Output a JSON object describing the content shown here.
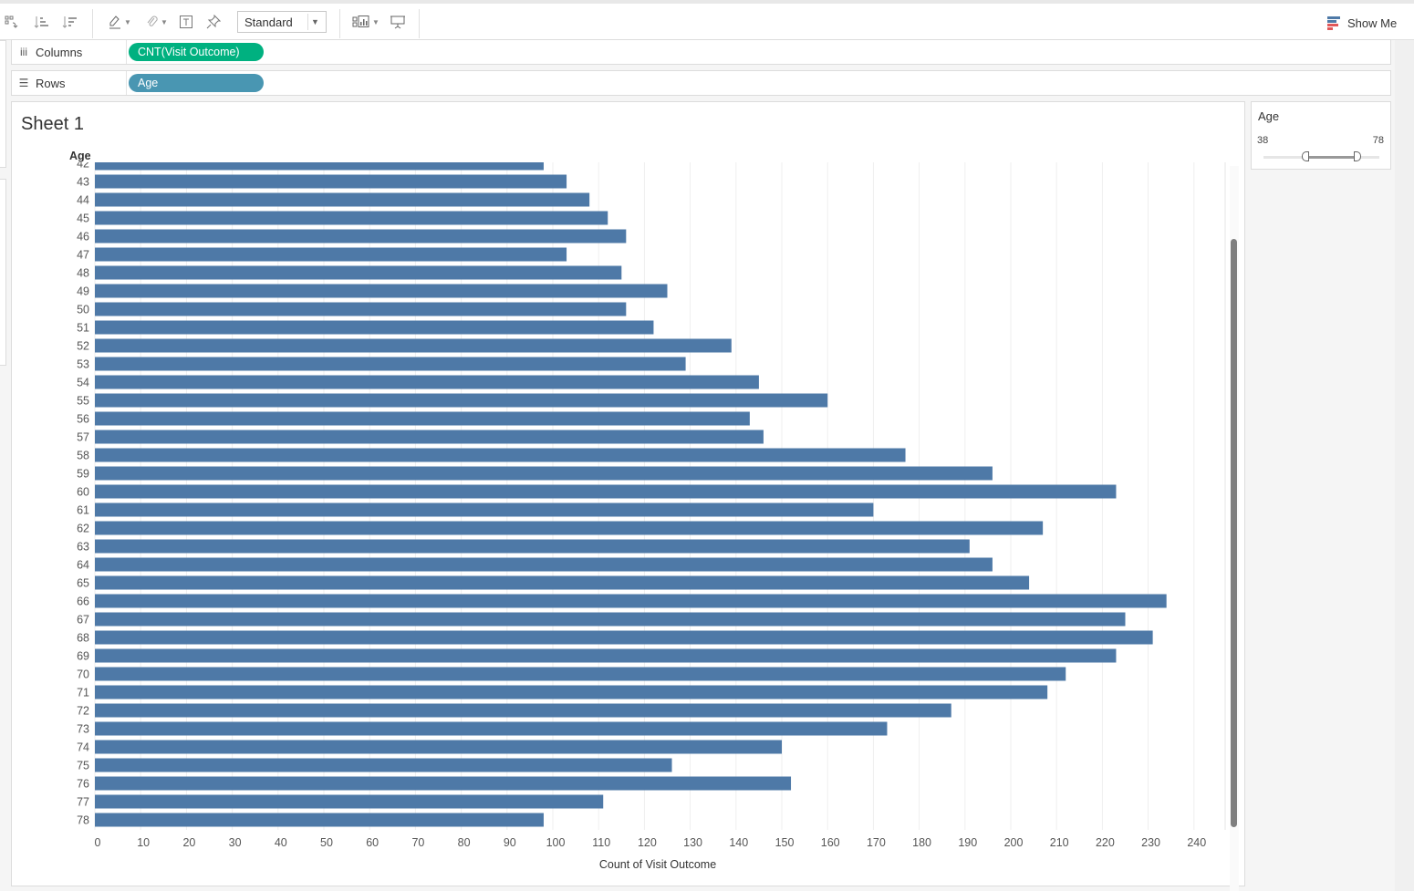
{
  "toolbar": {
    "fit_mode": "Standard",
    "show_me_label": "Show Me",
    "icons": [
      "swap-icon",
      "sort-ascending-icon",
      "sort-descending-icon",
      "highlight-icon",
      "attach-icon",
      "text-label-icon",
      "pin-icon",
      "chart-icon",
      "presentation-icon"
    ]
  },
  "shelves": {
    "columns": {
      "label": "Columns",
      "pill": "CNT(Visit Outcome)",
      "pill_color": "#00b180"
    },
    "rows": {
      "label": "Rows",
      "pill": "Age",
      "pill_color": "#4996b2"
    }
  },
  "sheet": {
    "title": "Sheet 1"
  },
  "filter": {
    "title": "Age",
    "min_label": "38",
    "max_label": "78",
    "min": 38,
    "max": 78,
    "low_value": 38,
    "high_value": 78
  },
  "chart_data": {
    "type": "bar",
    "orientation": "horizontal",
    "ylabel": "Age",
    "xlabel": "Count of Visit Outcome",
    "bar_color": "#4e79a7",
    "xlim": [
      0,
      248
    ],
    "x_ticks": [
      0,
      10,
      20,
      30,
      40,
      50,
      60,
      70,
      80,
      90,
      100,
      110,
      120,
      130,
      140,
      150,
      160,
      170,
      180,
      190,
      200,
      210,
      220,
      230,
      240
    ],
    "categories": [
      "42",
      "43",
      "44",
      "45",
      "46",
      "47",
      "48",
      "49",
      "50",
      "51",
      "52",
      "53",
      "54",
      "55",
      "56",
      "57",
      "58",
      "59",
      "60",
      "61",
      "62",
      "63",
      "64",
      "65",
      "66",
      "67",
      "68",
      "69",
      "70",
      "71",
      "72",
      "73",
      "74",
      "75",
      "76",
      "77",
      "78"
    ],
    "values": [
      98,
      103,
      108,
      112,
      116,
      103,
      115,
      125,
      116,
      122,
      139,
      129,
      145,
      160,
      143,
      146,
      177,
      196,
      223,
      170,
      207,
      191,
      196,
      204,
      234,
      225,
      231,
      223,
      212,
      208,
      187,
      173,
      150,
      126,
      152,
      111,
      98
    ],
    "grid": "vertical",
    "legend": "none"
  }
}
